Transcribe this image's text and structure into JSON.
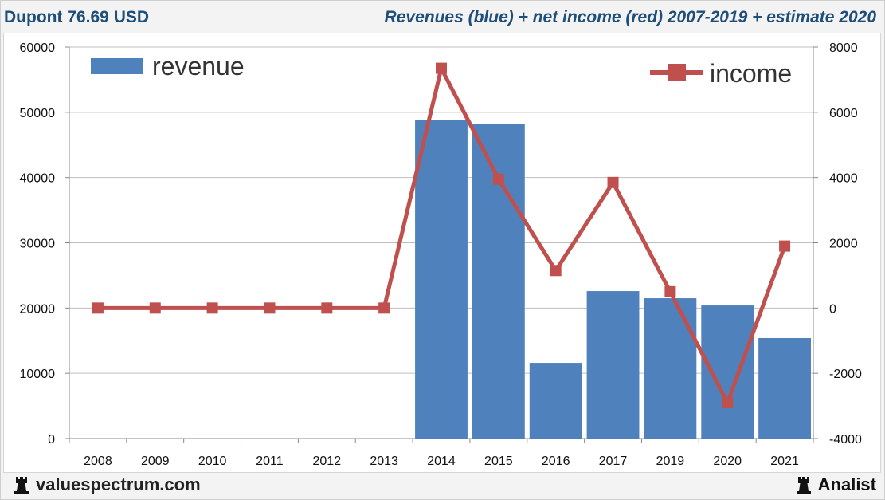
{
  "header": {
    "title": "Dupont 76.69 USD",
    "subtitle": "Revenues (blue) + net income (red) 2007-2019 + estimate 2020"
  },
  "footer": {
    "site": "valuespectrum.com",
    "brand": "Analist"
  },
  "colors": {
    "revenue": "#4f81bd",
    "income": "#c0504d",
    "grid": "#bfbfbf",
    "title": "#1f4e79"
  },
  "chart_data": {
    "type": "bar",
    "title": "Revenues (blue) + net income (red) 2007-2019 + estimate 2020",
    "categories": [
      "2008",
      "2009",
      "2010",
      "2011",
      "2012",
      "2013",
      "2014",
      "2015",
      "2016",
      "2017",
      "2019",
      "2020",
      "2021"
    ],
    "series": [
      {
        "name": "revenue",
        "type": "bar",
        "axis": "left",
        "values": [
          null,
          null,
          null,
          null,
          null,
          null,
          48800,
          48200,
          11600,
          22600,
          21500,
          20400,
          15400
        ]
      },
      {
        "name": "income",
        "type": "line",
        "axis": "right",
        "values": [
          0,
          0,
          0,
          0,
          0,
          0,
          7350,
          3950,
          1150,
          3850,
          500,
          -2900,
          1900
        ]
      }
    ],
    "y_left": {
      "min": 0,
      "max": 60000,
      "ticks": [
        "0",
        "10000",
        "20000",
        "30000",
        "40000",
        "50000",
        "60000"
      ]
    },
    "y_right": {
      "min": -4000,
      "max": 8000,
      "ticks": [
        "-4000",
        "-2000",
        "0",
        "2000",
        "4000",
        "6000",
        "8000"
      ]
    },
    "legend": {
      "revenue_label": "revenue",
      "income_label": "income"
    },
    "grid": true
  }
}
